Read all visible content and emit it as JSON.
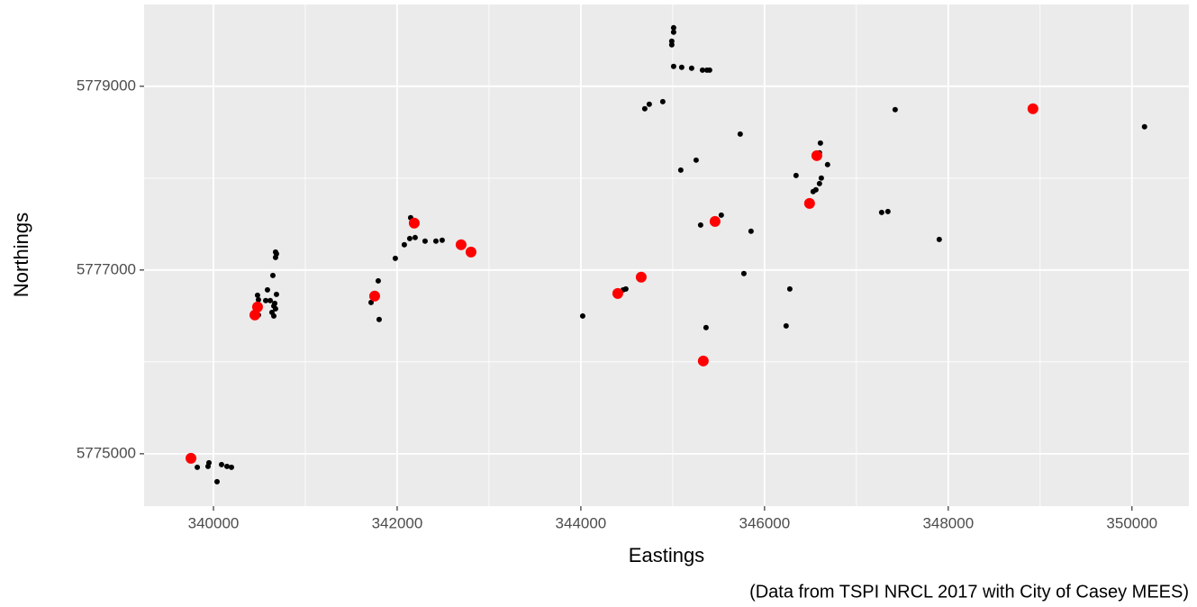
{
  "chart_data": {
    "type": "scatter",
    "xlabel": "Eastings",
    "ylabel": "Northings",
    "caption": "(Data from TSPI NRCL 2017 with City of Casey MEES)",
    "xlim": [
      339245,
      350620
    ],
    "xticks": [
      340000,
      342000,
      344000,
      346000,
      348000,
      350000
    ],
    "ylim": [
      5774430,
      5779890
    ],
    "yticks": [
      5775000,
      5777000,
      5779000
    ],
    "grid": true,
    "series": [
      {
        "color": "#000000",
        "x": [
          339824,
          339941,
          339951,
          340039,
          340088,
          340147,
          340196,
          340461,
          340490,
          340480,
          340490,
          340569,
          340588,
          340618,
          340637,
          340657,
          340657,
          340667,
          340676,
          340676,
          340676,
          340686,
          340647,
          340686,
          341716,
          341794,
          341804,
          341980,
          342078,
          342137,
          342147,
          342196,
          342304,
          342422,
          342490,
          344020,
          344461,
          344490,
          344696,
          344745,
          344892,
          345010,
          345010,
          344990,
          344990,
          345010,
          345098,
          345206,
          345324,
          345373,
          345402,
          345088,
          345255,
          345304,
          345529,
          345735,
          345775,
          345853,
          345363,
          346235,
          346275,
          346343,
          346529,
          346559,
          346598,
          346618,
          346608,
          346598,
          346686,
          347275,
          347343,
          347422,
          347902,
          350137
        ],
        "values": [
          5774853,
          5774863,
          5774902,
          5774696,
          5774882,
          5774863,
          5774853,
          5776539,
          5776676,
          5776725,
          5776510,
          5776667,
          5776784,
          5776667,
          5776539,
          5776500,
          5776608,
          5776637,
          5776578,
          5777137,
          5777196,
          5777176,
          5776941,
          5776735,
          5776647,
          5776882,
          5776461,
          5777127,
          5777275,
          5777343,
          5777569,
          5777353,
          5777314,
          5777314,
          5777324,
          5776500,
          5776784,
          5776794,
          5778755,
          5778804,
          5778833,
          5779637,
          5779588,
          5779490,
          5779451,
          5779216,
          5779206,
          5779196,
          5779176,
          5779176,
          5779176,
          5778088,
          5778196,
          5777490,
          5777598,
          5778480,
          5776961,
          5777422,
          5776373,
          5776392,
          5776794,
          5778029,
          5777853,
          5777873,
          5777941,
          5778000,
          5778382,
          5778275,
          5778147,
          5777627,
          5777637,
          5778745,
          5777333,
          5778559
        ]
      },
      {
        "color": "#ff0000",
        "x": [
          339755,
          340451,
          340480,
          341755,
          342186,
          342696,
          342804,
          344402,
          344657,
          345333,
          345461,
          346490,
          346569,
          348922
        ],
        "values": [
          5774951,
          5776510,
          5776598,
          5776716,
          5777510,
          5777275,
          5777196,
          5776745,
          5776922,
          5776010,
          5777529,
          5777725,
          5778245,
          5778755
        ]
      }
    ]
  }
}
